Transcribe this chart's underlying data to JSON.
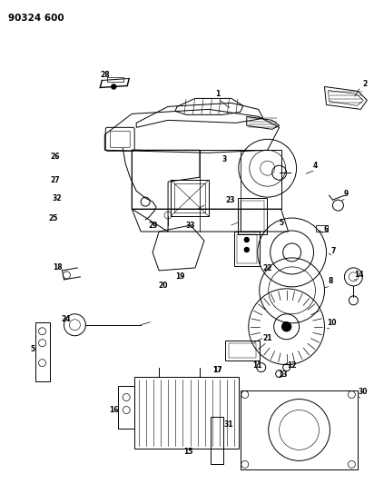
{
  "title": "90324 600",
  "bg_color": "#ffffff",
  "fig_width": 4.12,
  "fig_height": 5.33,
  "dpi": 100
}
